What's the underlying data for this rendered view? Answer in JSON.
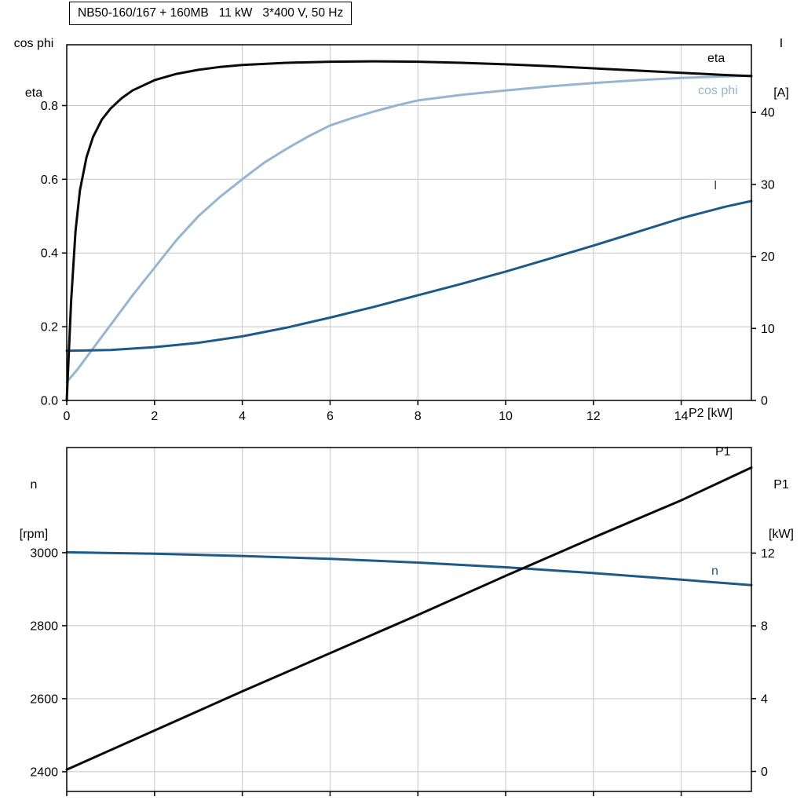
{
  "header": {
    "title": "NB50-160/167 + 160MB   11 kW   3*400 V, 50 Hz"
  },
  "colors": {
    "black": "#0a0a0a",
    "dark_blue": "#1d5a88",
    "light_blue": "#96b5d1",
    "grid": "#c8c8c8",
    "axis": "#000000",
    "background": "#ffffff"
  },
  "chart_data": [
    {
      "type": "line",
      "name": "motor-electrical-chart",
      "title": "NB50-160/167 + 160MB   11 kW   3*400 V, 50 Hz",
      "xlabel": "P2 [kW]",
      "grid": true,
      "x_axis": {
        "label": "P2 [kW]",
        "range": [
          0,
          15.6
        ],
        "show_labels": true,
        "ticks": [
          {
            "v": 0,
            "label": "0"
          },
          {
            "v": 2,
            "label": "2"
          },
          {
            "v": 4,
            "label": "4"
          },
          {
            "v": 6,
            "label": "6"
          },
          {
            "v": 8,
            "label": "8"
          },
          {
            "v": 10,
            "label": "10"
          },
          {
            "v": 12,
            "label": "12"
          },
          {
            "v": 14,
            "label": "14"
          }
        ]
      },
      "left_axis": {
        "label_lines": [
          "cos phi",
          "eta"
        ],
        "range": [
          0,
          0.965
        ],
        "ticks": [
          {
            "v": 0.0,
            "label": "0.0"
          },
          {
            "v": 0.2,
            "label": "0.2"
          },
          {
            "v": 0.4,
            "label": "0.4"
          },
          {
            "v": 0.6,
            "label": "0.6"
          },
          {
            "v": 0.8,
            "label": "0.8"
          }
        ]
      },
      "right_axis": {
        "label_lines": [
          "I",
          "[A]"
        ],
        "range": [
          0,
          49.4
        ],
        "ticks": [
          {
            "v": 0,
            "label": "0"
          },
          {
            "v": 10,
            "label": "10"
          },
          {
            "v": 20,
            "label": "20"
          },
          {
            "v": 30,
            "label": "30"
          },
          {
            "v": 40,
            "label": "40"
          }
        ]
      },
      "series": [
        {
          "name": "cos-phi",
          "label": "cos phi",
          "axis": "left",
          "color_key": "light_blue",
          "width": 3,
          "x": [
            0,
            0.25,
            0.5,
            0.75,
            1,
            1.5,
            2,
            2.5,
            3,
            3.5,
            4,
            4.5,
            5,
            5.5,
            6,
            6.5,
            7,
            7.5,
            8,
            9,
            10,
            11,
            12,
            13,
            14,
            15,
            15.6
          ],
          "y": [
            0.05,
            0.085,
            0.125,
            0.165,
            0.205,
            0.285,
            0.36,
            0.435,
            0.5,
            0.553,
            0.6,
            0.645,
            0.682,
            0.716,
            0.746,
            0.766,
            0.784,
            0.8,
            0.814,
            0.829,
            0.841,
            0.852,
            0.861,
            0.869,
            0.875,
            0.879,
            0.881
          ]
        },
        {
          "name": "current",
          "label": "I",
          "axis": "right",
          "color_key": "dark_blue",
          "width": 3,
          "x": [
            0,
            1,
            2,
            3,
            4,
            5,
            6,
            7,
            8,
            9,
            10,
            11,
            12,
            13,
            14,
            15,
            15.6
          ],
          "y": [
            6.9,
            7.0,
            7.4,
            8.0,
            8.9,
            10.1,
            11.5,
            13.0,
            14.6,
            16.2,
            17.9,
            19.7,
            21.5,
            23.4,
            25.3,
            26.9,
            27.7
          ]
        },
        {
          "name": "eta",
          "label": "eta",
          "axis": "left",
          "color_key": "black",
          "width": 3,
          "x": [
            0,
            0.1,
            0.2,
            0.3,
            0.45,
            0.6,
            0.8,
            1,
            1.25,
            1.5,
            2,
            2.5,
            3,
            3.5,
            4,
            5,
            6,
            7,
            8,
            9,
            10,
            11,
            12,
            13,
            14,
            15,
            15.6
          ],
          "y": [
            0,
            0.27,
            0.46,
            0.57,
            0.66,
            0.715,
            0.762,
            0.792,
            0.82,
            0.841,
            0.869,
            0.886,
            0.897,
            0.905,
            0.91,
            0.916,
            0.919,
            0.92,
            0.919,
            0.916,
            0.912,
            0.907,
            0.901,
            0.895,
            0.889,
            0.883,
            0.88
          ]
        }
      ]
    },
    {
      "type": "line",
      "name": "motor-speed-power-chart",
      "title": "",
      "xlabel": "",
      "grid": true,
      "x_axis": {
        "label": "",
        "range": [
          0,
          15.6
        ],
        "show_labels": false,
        "ticks": [
          {
            "v": 0,
            "label": ""
          },
          {
            "v": 2,
            "label": ""
          },
          {
            "v": 4,
            "label": ""
          },
          {
            "v": 6,
            "label": ""
          },
          {
            "v": 8,
            "label": ""
          },
          {
            "v": 10,
            "label": ""
          },
          {
            "v": 12,
            "label": ""
          },
          {
            "v": 14,
            "label": ""
          }
        ]
      },
      "left_axis": {
        "label_lines": [
          "n",
          "[rpm]"
        ],
        "range": [
          2346,
          3288
        ],
        "ticks": [
          {
            "v": 2400,
            "label": "2400"
          },
          {
            "v": 2600,
            "label": "2600"
          },
          {
            "v": 2800,
            "label": "2800"
          },
          {
            "v": 3000,
            "label": "3000"
          }
        ]
      },
      "right_axis": {
        "label_lines": [
          "P1",
          "[kW]"
        ],
        "range": [
          -1.1,
          17.8
        ],
        "ticks": [
          {
            "v": 0,
            "label": "0"
          },
          {
            "v": 4,
            "label": "4"
          },
          {
            "v": 8,
            "label": "8"
          },
          {
            "v": 12,
            "label": "12"
          }
        ]
      },
      "series": [
        {
          "name": "speed",
          "label": "n",
          "axis": "left",
          "color_key": "dark_blue",
          "width": 3,
          "x": [
            0,
            2,
            4,
            6,
            8,
            10,
            12,
            14,
            15.6
          ],
          "y": [
            3001,
            2997,
            2991,
            2983,
            2973,
            2960,
            2944,
            2926,
            2911
          ]
        },
        {
          "name": "input-power",
          "label": "P1",
          "axis": "right",
          "color_key": "black",
          "width": 3,
          "x": [
            0,
            2,
            4,
            6,
            8,
            10,
            12,
            14,
            15.6
          ],
          "y": [
            0.1,
            2.25,
            4.4,
            6.5,
            8.6,
            10.75,
            12.85,
            14.9,
            16.7
          ]
        }
      ]
    }
  ]
}
